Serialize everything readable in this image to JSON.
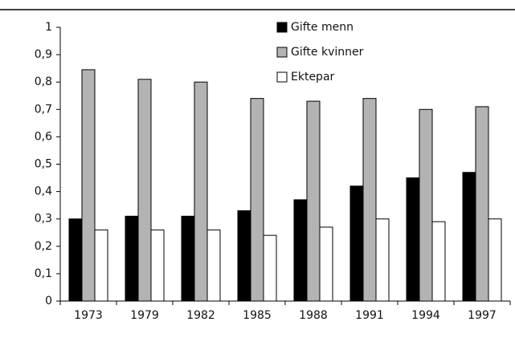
{
  "chart_data": {
    "type": "bar",
    "categories": [
      "1973",
      "1979",
      "1982",
      "1985",
      "1988",
      "1991",
      "1994",
      "1997"
    ],
    "series": [
      {
        "name": "Gifte menn",
        "color": "#000000",
        "values": [
          0.3,
          0.31,
          0.31,
          0.33,
          0.37,
          0.42,
          0.45,
          0.47
        ]
      },
      {
        "name": "Gifte kvinner",
        "color": "#b3b3b3",
        "values": [
          0.845,
          0.81,
          0.8,
          0.74,
          0.73,
          0.74,
          0.7,
          0.71
        ]
      },
      {
        "name": "Ektepar",
        "color": "#ffffff",
        "values": [
          0.26,
          0.26,
          0.26,
          0.24,
          0.27,
          0.3,
          0.29,
          0.3
        ]
      }
    ],
    "ylim": [
      0,
      1
    ],
    "yticks": [
      0,
      {
        "value": 0.1,
        "label": "0,1"
      },
      {
        "value": 0.2,
        "label": "0,2"
      },
      {
        "value": 0.3,
        "label": "0,3"
      },
      {
        "value": 0.4,
        "label": "0,4"
      },
      {
        "value": 0.5,
        "label": "0,5"
      },
      {
        "value": 0.6,
        "label": "0,6"
      },
      {
        "value": 0.7,
        "label": "0,7"
      },
      {
        "value": 0.8,
        "label": "0,8"
      },
      {
        "value": 0.9,
        "label": "0,9"
      },
      1
    ],
    "grid": false,
    "legend": "top"
  }
}
